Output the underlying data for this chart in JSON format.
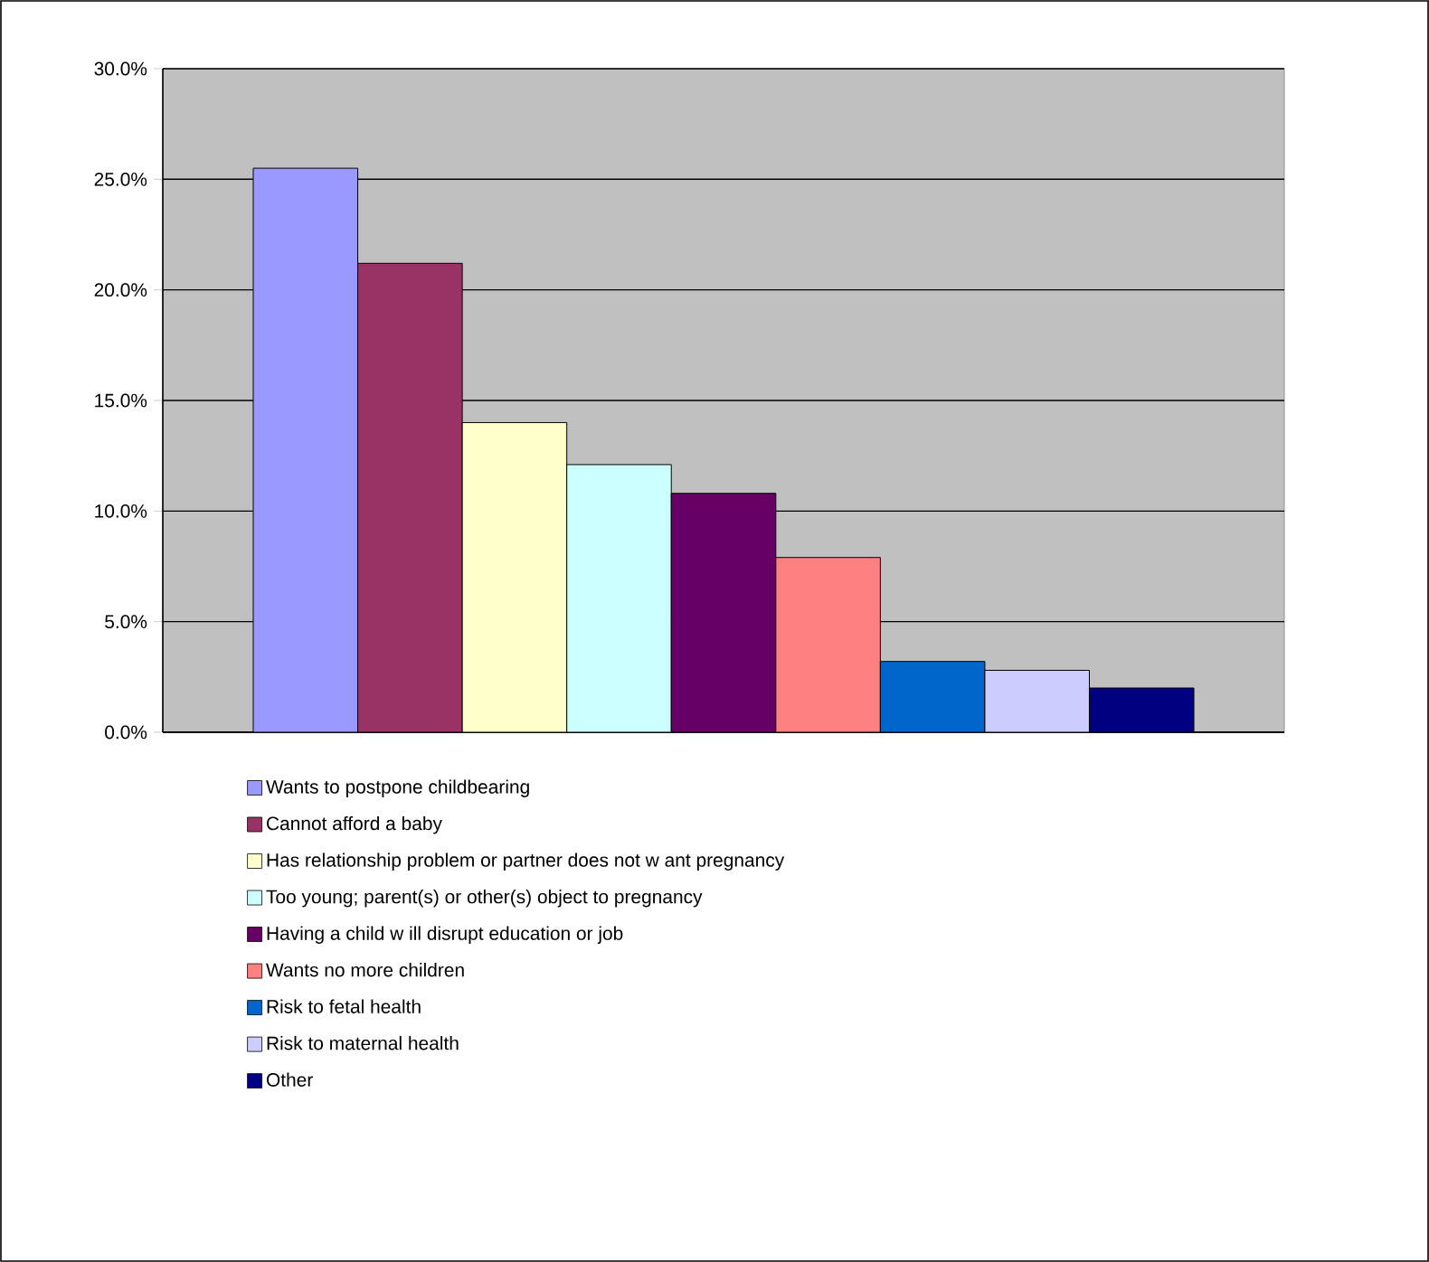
{
  "chart_data": {
    "type": "bar",
    "categories": [
      null
    ],
    "series": [
      {
        "name": "Wants to postpone childbearing",
        "color": "#9999ff",
        "values": [
          25.5
        ]
      },
      {
        "name": "Cannot afford a baby",
        "color": "#993366",
        "values": [
          21.2
        ]
      },
      {
        "name": "Has relationship problem or partner does not w ant pregnancy",
        "color": "#ffffcc",
        "values": [
          14.0
        ]
      },
      {
        "name": "Too young; parent(s) or other(s) object to pregnancy",
        "color": "#ccffff",
        "values": [
          12.1
        ]
      },
      {
        "name": "Having a child w ill disrupt education or job",
        "color": "#660066",
        "values": [
          10.8
        ]
      },
      {
        "name": "Wants no more children",
        "color": "#ff8080",
        "values": [
          7.9
        ]
      },
      {
        "name": "Risk to fetal health",
        "color": "#0066cc",
        "values": [
          3.2
        ]
      },
      {
        "name": "Risk to maternal health",
        "color": "#ccccff",
        "values": [
          2.8
        ]
      },
      {
        "name": "Other",
        "color": "#000080",
        "values": [
          2.0
        ]
      }
    ],
    "ylim": [
      0,
      30
    ],
    "yticks": [
      {
        "value": 0,
        "label": "0.0%"
      },
      {
        "value": 5,
        "label": "5.0%"
      },
      {
        "value": 10,
        "label": "10.0%"
      },
      {
        "value": 15,
        "label": "15.0%"
      },
      {
        "value": 20,
        "label": "20.0%"
      },
      {
        "value": 25,
        "label": "25.0%"
      },
      {
        "value": 30,
        "label": "30.0%"
      }
    ],
    "grid": "y",
    "legend": "bottom"
  }
}
